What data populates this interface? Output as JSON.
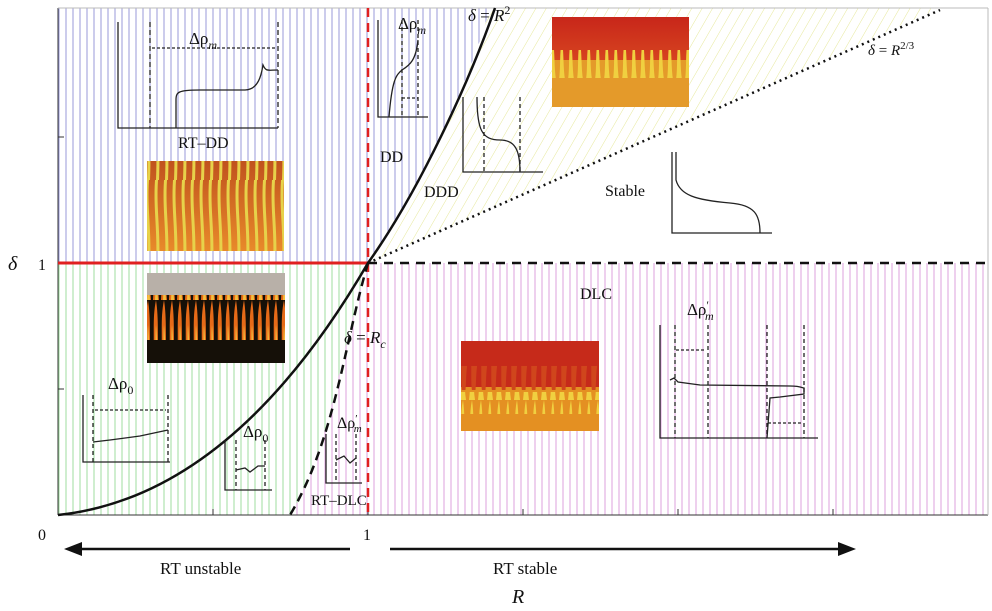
{
  "axes": {
    "x_label": "R",
    "y_label": "δ",
    "x_tick_0": "0",
    "x_tick_1": "1",
    "y_tick_1": "1",
    "left_arrow_label": "RT unstable",
    "right_arrow_label": "RT stable"
  },
  "curves": {
    "r2_delta": "δ",
    "r2_eq": " = ",
    "r2_R": "R",
    "r2_exp": "2",
    "r23_delta": "δ",
    "r23_eq": " = ",
    "r23_R": "R",
    "r23_exp": "2/3",
    "rc_delta": "δ",
    "rc_eq": " = ",
    "rc_R": "R",
    "rc_sub": "c"
  },
  "regions": {
    "rt_dd": "RT–DD",
    "dd": "DD",
    "ddd": "DDD",
    "stable": "Stable",
    "dlc": "DLC",
    "rt_dlc": "RT–DLC"
  },
  "profile_labels": {
    "delta_rho": "Δρ",
    "sub_m": "m",
    "sub_0": "0",
    "prime": "′"
  },
  "colors": {
    "blue_hatch": "#9a9ad8",
    "yellow_hatch": "#e6e89a",
    "green_hatch": "#9fdc9f",
    "pink_hatch": "#dca0dc",
    "red_line": "#e02020"
  }
}
